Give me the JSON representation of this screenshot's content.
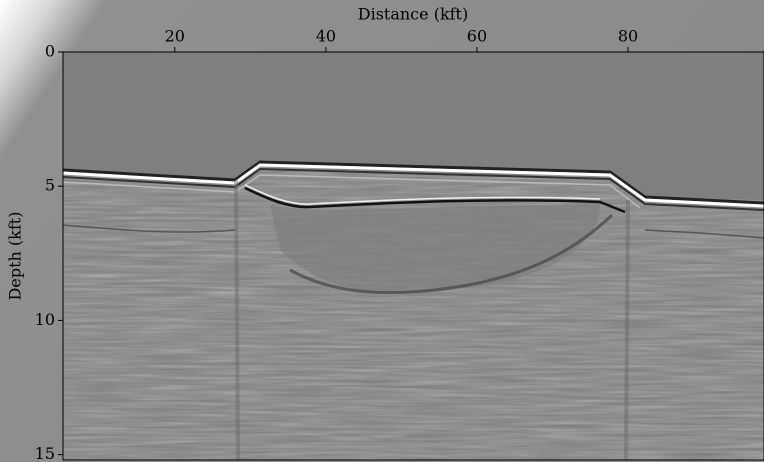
{
  "chart_data": {
    "type": "image",
    "x_label": "Distance (kft)",
    "y_label": "Depth (kft)",
    "xlim": [
      5.2,
      98
    ],
    "xticks": [
      20,
      40,
      60,
      80
    ],
    "ylim": [
      0,
      15.2
    ],
    "yticks": [
      0,
      5,
      10,
      15
    ],
    "y_inverted": true,
    "x_axis_position": "top"
  }
}
